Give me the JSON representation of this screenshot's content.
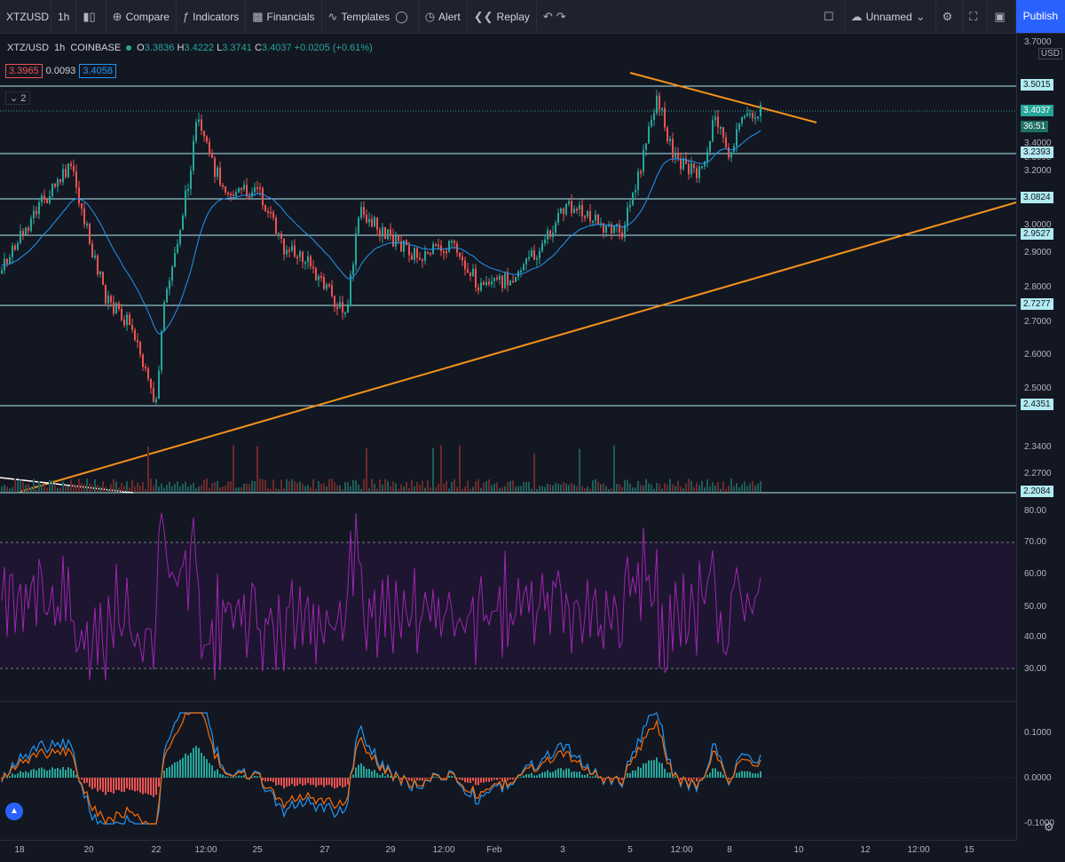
{
  "toolbar": {
    "symbol": "XTZUSD",
    "interval": "1h",
    "compare": "Compare",
    "indicators": "Indicators",
    "financials": "Financials",
    "templates": "Templates",
    "alert": "Alert",
    "replay": "Replay",
    "layout_name": "Unnamed",
    "publish": "Publish"
  },
  "legend": {
    "symbol": "XTZ/USD",
    "interval": "1h",
    "exchange": "COINBASE",
    "open": "3.3836",
    "high": "3.4222",
    "low": "3.3741",
    "close": "3.4037",
    "change": "+0.0205 (+0.61%)",
    "bid": "3.3965",
    "spread": "0.0093",
    "ask": "3.4058",
    "collapse_count": "2"
  },
  "price_axis": {
    "currency": "USD",
    "ticks": [
      "3.7000",
      "3.4000",
      "3.3000",
      "3.2000",
      "3.0000",
      "2.9000",
      "2.8000",
      "2.7000",
      "2.6000",
      "2.5000",
      "2.3400",
      "2.2700"
    ],
    "levels": [
      "3.5015",
      "3.2393",
      "3.0824",
      "2.9527",
      "2.7277",
      "2.4351",
      "2.2084"
    ],
    "last_price": "3.4037",
    "countdown": "36:51"
  },
  "rsi_axis": {
    "ticks": [
      "80.00",
      "70.00",
      "60.00",
      "50.00",
      "40.00",
      "30.00"
    ]
  },
  "macd_axis": {
    "ticks": [
      "0.1000",
      "0.0000",
      "-0.1000"
    ]
  },
  "date_axis": {
    "labels": [
      "18",
      "20",
      "22",
      "12:00",
      "25",
      "27",
      "29",
      "12:00",
      "Feb",
      "3",
      "5",
      "12:00",
      "8",
      "10",
      "12",
      "12:00",
      "15"
    ]
  },
  "colors": {
    "up": "#26a69a",
    "down": "#ef5350",
    "trendline": "#f7931a",
    "level": "#b2ebf2",
    "ma": "#2196f3",
    "rsi": "#9c27b0",
    "background": "#131722"
  },
  "icons": [
    "candles-icon",
    "compare-plus-icon",
    "indicators-icon",
    "financials-icon",
    "templates-icon",
    "alert-clock-icon",
    "replay-icon",
    "undo-icon",
    "layout-cloud-icon",
    "settings-gear-icon",
    "fullscreen-icon",
    "screenshot-camera-icon",
    "tradingview-logo-icon"
  ]
}
